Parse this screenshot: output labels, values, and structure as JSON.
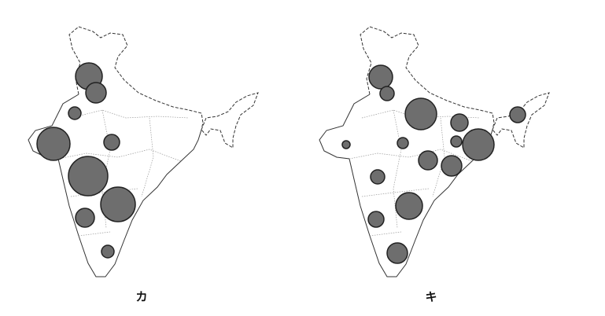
{
  "maps": [
    {
      "label": "カ"
    },
    {
      "label": "キ"
    }
  ]
}
